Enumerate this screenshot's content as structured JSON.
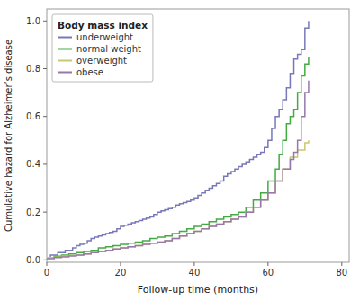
{
  "chart_data": {
    "type": "step",
    "title": "Body mass index",
    "xlabel": "Follow-up time (months)",
    "ylabel": "Cumulative hazard for Alzheimer’s disease",
    "xlim": [
      0,
      82
    ],
    "ylim": [
      -0.01,
      1.05
    ],
    "xticks": [
      0,
      20,
      40,
      60,
      80
    ],
    "yticks": [
      {
        "value": 0.0,
        "label": "0.0"
      },
      0.2,
      0.4,
      0.6,
      0.8,
      {
        "value": 1.0,
        "label": "1.0"
      }
    ],
    "grid": false,
    "legend": "top-left",
    "series": [
      {
        "name": "underweight",
        "color": "#7878b8",
        "x": [
          0,
          1,
          3,
          5,
          7,
          8,
          9,
          10,
          11,
          12,
          13,
          14,
          15,
          16,
          17,
          18,
          19,
          20,
          21,
          22,
          23,
          24,
          25,
          26,
          27,
          28,
          29,
          30,
          31,
          32,
          33,
          34,
          35,
          36,
          37,
          38,
          39,
          40,
          41,
          42,
          43,
          44,
          45,
          46,
          47,
          48,
          49,
          50,
          51,
          52,
          53,
          54,
          55,
          56,
          57,
          58,
          59,
          60,
          61,
          62,
          63,
          64,
          65,
          66,
          67,
          68,
          69,
          70,
          71
        ],
        "values": [
          0.01,
          0.02,
          0.03,
          0.04,
          0.05,
          0.06,
          0.065,
          0.07,
          0.08,
          0.09,
          0.095,
          0.1,
          0.105,
          0.11,
          0.115,
          0.12,
          0.13,
          0.14,
          0.145,
          0.15,
          0.155,
          0.16,
          0.165,
          0.17,
          0.175,
          0.18,
          0.19,
          0.2,
          0.205,
          0.21,
          0.215,
          0.22,
          0.23,
          0.235,
          0.24,
          0.245,
          0.25,
          0.26,
          0.27,
          0.28,
          0.29,
          0.3,
          0.31,
          0.32,
          0.33,
          0.35,
          0.36,
          0.37,
          0.38,
          0.39,
          0.4,
          0.41,
          0.42,
          0.43,
          0.44,
          0.45,
          0.47,
          0.5,
          0.55,
          0.6,
          0.63,
          0.67,
          0.72,
          0.78,
          0.84,
          0.86,
          0.88,
          0.97,
          1.0
        ]
      },
      {
        "name": "normal weight",
        "color": "#44aa44",
        "x": [
          0,
          2,
          4,
          6,
          8,
          10,
          12,
          14,
          16,
          18,
          20,
          22,
          24,
          26,
          28,
          30,
          32,
          34,
          36,
          38,
          40,
          42,
          44,
          46,
          48,
          50,
          52,
          54,
          56,
          58,
          60,
          62,
          63,
          64,
          65,
          66,
          67,
          68,
          69,
          70,
          71
        ],
        "values": [
          0.01,
          0.015,
          0.02,
          0.025,
          0.03,
          0.035,
          0.04,
          0.05,
          0.055,
          0.06,
          0.065,
          0.07,
          0.075,
          0.08,
          0.09,
          0.095,
          0.1,
          0.11,
          0.12,
          0.13,
          0.14,
          0.15,
          0.16,
          0.17,
          0.18,
          0.19,
          0.2,
          0.22,
          0.25,
          0.28,
          0.33,
          0.38,
          0.44,
          0.5,
          0.57,
          0.6,
          0.63,
          0.7,
          0.77,
          0.82,
          0.85
        ]
      },
      {
        "name": "overweight",
        "color": "#c8c870",
        "x": [
          0,
          2,
          4,
          6,
          8,
          10,
          12,
          14,
          16,
          18,
          20,
          22,
          24,
          26,
          28,
          30,
          32,
          34,
          36,
          38,
          40,
          42,
          44,
          46,
          48,
          50,
          52,
          54,
          56,
          58,
          60,
          62,
          64,
          66,
          68,
          70,
          71
        ],
        "values": [
          0.01,
          0.012,
          0.015,
          0.018,
          0.02,
          0.025,
          0.03,
          0.035,
          0.04,
          0.045,
          0.05,
          0.055,
          0.06,
          0.065,
          0.07,
          0.075,
          0.08,
          0.09,
          0.1,
          0.11,
          0.12,
          0.13,
          0.14,
          0.15,
          0.16,
          0.17,
          0.18,
          0.2,
          0.22,
          0.25,
          0.28,
          0.33,
          0.38,
          0.43,
          0.46,
          0.49,
          0.5
        ]
      },
      {
        "name": "obese",
        "color": "#9977aa",
        "x": [
          0,
          2,
          4,
          6,
          8,
          10,
          12,
          14,
          16,
          18,
          20,
          22,
          24,
          26,
          28,
          30,
          32,
          34,
          36,
          38,
          40,
          42,
          44,
          46,
          48,
          50,
          52,
          54,
          56,
          58,
          60,
          62,
          64,
          66,
          67,
          68,
          69,
          70,
          71
        ],
        "values": [
          0.005,
          0.01,
          0.013,
          0.016,
          0.02,
          0.025,
          0.03,
          0.035,
          0.04,
          0.045,
          0.05,
          0.055,
          0.06,
          0.065,
          0.07,
          0.075,
          0.08,
          0.09,
          0.1,
          0.11,
          0.12,
          0.13,
          0.14,
          0.15,
          0.16,
          0.17,
          0.18,
          0.2,
          0.22,
          0.25,
          0.28,
          0.33,
          0.38,
          0.42,
          0.45,
          0.5,
          0.6,
          0.7,
          0.75
        ]
      }
    ]
  }
}
